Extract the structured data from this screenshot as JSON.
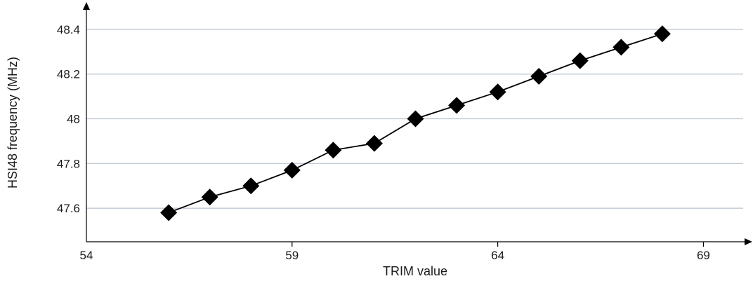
{
  "chart_data": {
    "type": "line",
    "title": "",
    "xlabel": "TRIM value",
    "ylabel": "HSI48 frequency (MHz)",
    "xlim": [
      54,
      70
    ],
    "ylim": [
      47.45,
      48.5
    ],
    "x_ticks": [
      54,
      59,
      64,
      69
    ],
    "y_ticks": [
      47.6,
      47.8,
      48,
      48.2,
      48.4
    ],
    "x_tick_labels": [
      "54",
      "59",
      "64",
      "69"
    ],
    "y_tick_labels": [
      "47.6",
      "47.8",
      "48",
      "48.2",
      "48.4"
    ],
    "grid": "horizontal",
    "legend": "none",
    "marker": "diamond",
    "colors": {
      "line": "#000000",
      "marker": "#000000",
      "grid": "#b9c2cf",
      "axis": "#000000"
    },
    "series": [
      {
        "x": [
          56,
          57,
          58,
          59,
          60,
          61,
          62,
          63,
          64,
          65,
          66,
          67,
          68
        ],
        "y": [
          47.58,
          47.65,
          47.7,
          47.77,
          47.86,
          47.89,
          48.0,
          48.06,
          48.12,
          48.19,
          48.26,
          48.32,
          48.38
        ]
      }
    ]
  }
}
